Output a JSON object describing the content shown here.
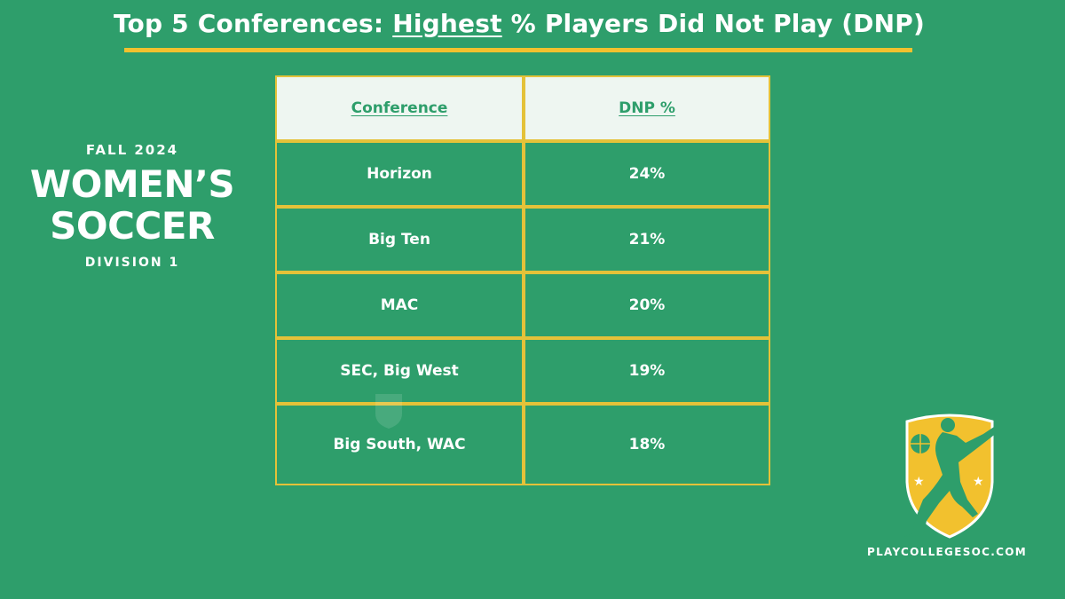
{
  "title": {
    "prefix": "Top 5 Conferences: ",
    "emphasis": "Highest",
    "suffix": " % Players Did Not Play (DNP)"
  },
  "left": {
    "season": "FALL 2024",
    "sport_line1": "WOMEN’S",
    "sport_line2": "SOCCER",
    "division": "DIVISION 1"
  },
  "colors": {
    "background": "#2e9e6b",
    "accent": "#f2c12e",
    "header_fill": "#eef6f1",
    "border": "#e4c239"
  },
  "chart_data": {
    "type": "table",
    "title": "Top 5 Conferences: Highest % Players Did Not Play (DNP)",
    "columns": [
      "Conference",
      "DNP %"
    ],
    "rows": [
      [
        "Horizon",
        "24%"
      ],
      [
        "Big Ten",
        "21%"
      ],
      [
        "MAC",
        "20%"
      ],
      [
        "SEC, Big West",
        "19%"
      ],
      [
        "Big South, WAC",
        "18%"
      ]
    ],
    "values": [
      24,
      21,
      20,
      19,
      18
    ]
  },
  "logo": {
    "icon": "soccer-player-shield-icon",
    "site": "PLAYCOLLEGESOC.COM"
  }
}
